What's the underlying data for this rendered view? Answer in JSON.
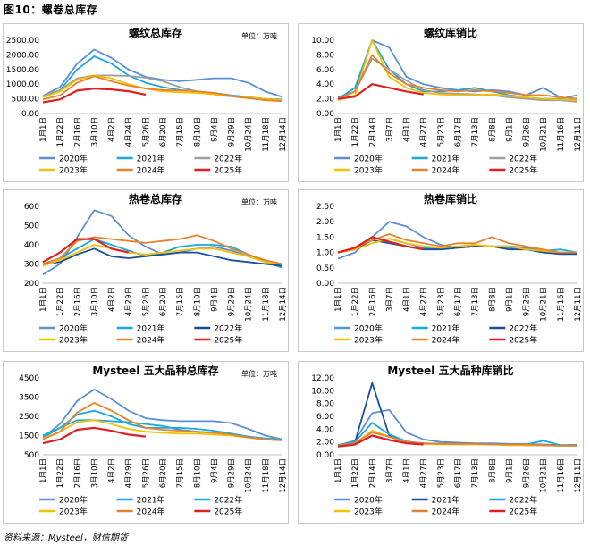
{
  "figure_title": "图10：螺卷总库存",
  "source": "资料来源：Mysteel，财信期货",
  "palette": {
    "2020年": "#5b8fd6",
    "2021年": "#1aa8e0",
    "2022年": "#9e9e9e",
    "2023年": "#f5c000",
    "2024年": "#e8822a",
    "2025年": "#e02020",
    "2022年_hot": "#1b4f9c"
  },
  "chart_data": [
    {
      "type": "line",
      "title": "螺纹总库存",
      "unit": "单位：万吨",
      "ylim": [
        0,
        2500
      ],
      "yticks": [
        "0.00",
        "500.00",
        "1000.00",
        "1500.00",
        "2000.00",
        "2500.00"
      ],
      "x_labels": [
        "1月1日",
        "1月22日",
        "2月16日",
        "3月10日",
        "4月2日",
        "4月24日",
        "5月26日",
        "6月20日",
        "7月15日",
        "8月10日",
        "9月4日",
        "9月29日",
        "10月24日",
        "11月18日",
        "12月14日"
      ],
      "legend": [
        "2020年",
        "2021年",
        "2022年",
        "2023年",
        "2024年",
        "2025年"
      ],
      "series": [
        {
          "name": "2020年",
          "color": "#5b8fd6",
          "values": [
            600,
            900,
            1700,
            2180,
            1900,
            1500,
            1250,
            1150,
            1100,
            1150,
            1200,
            1200,
            1050,
            750,
            560
          ]
        },
        {
          "name": "2021年",
          "color": "#1aa8e0",
          "values": [
            560,
            800,
            1500,
            1950,
            1700,
            1300,
            1050,
            900,
            800,
            750,
            700,
            620,
            560,
            500,
            480
          ]
        },
        {
          "name": "2022年",
          "color": "#9e9e9e",
          "values": [
            600,
            800,
            1200,
            1300,
            1300,
            1280,
            1220,
            1100,
            900,
            750,
            650,
            580,
            520,
            480,
            450
          ]
        },
        {
          "name": "2023年",
          "color": "#f5c000",
          "values": [
            550,
            750,
            1150,
            1300,
            1200,
            1000,
            850,
            750,
            720,
            700,
            650,
            600,
            550,
            500,
            450
          ]
        },
        {
          "name": "2024年",
          "color": "#e8822a",
          "values": [
            480,
            620,
            1050,
            1270,
            1100,
            950,
            850,
            800,
            780,
            760,
            700,
            600,
            520,
            450,
            420
          ]
        },
        {
          "name": "2025年",
          "color": "#e02020",
          "values": [
            380,
            480,
            780,
            850,
            820,
            760,
            640
          ]
        }
      ]
    },
    {
      "type": "line",
      "title": "螺纹库销比",
      "unit": "",
      "ylim": [
        0,
        10
      ],
      "yticks": [
        "0.00",
        "2.00",
        "4.00",
        "6.00",
        "8.00",
        "10.00"
      ],
      "x_labels": [
        "1月1日",
        "1月22日",
        "2月14日",
        "3月7日",
        "4月1日",
        "4月27日",
        "5月23日",
        "6月17日",
        "7月13日",
        "8月8日",
        "9月1日",
        "9月26日",
        "10月21日",
        "11月16日",
        "12月11日"
      ],
      "legend": [
        "2020年",
        "2021年",
        "2022年",
        "2023年",
        "2024年",
        "2025年"
      ],
      "series": [
        {
          "name": "2020年",
          "color": "#5b8fd6",
          "values": [
            2.2,
            3.0,
            10.0,
            9.0,
            5.0,
            4.0,
            3.5,
            3.2,
            3.0,
            3.2,
            3.0,
            2.5,
            3.5,
            2.2,
            2.0
          ]
        },
        {
          "name": "2021年",
          "color": "#1aa8e0",
          "values": [
            2.0,
            3.5,
            10.0,
            6.0,
            4.0,
            3.0,
            3.0,
            3.2,
            3.5,
            3.0,
            2.5,
            2.2,
            2.0,
            2.0,
            2.5
          ]
        },
        {
          "name": "2022年",
          "color": "#9e9e9e",
          "values": [
            2.0,
            3.0,
            7.5,
            6.0,
            4.5,
            3.2,
            2.8,
            2.7,
            2.6,
            2.5,
            2.2,
            2.0,
            1.8,
            1.8,
            1.6
          ]
        },
        {
          "name": "2023年",
          "color": "#f5c000",
          "values": [
            1.8,
            2.5,
            10.0,
            5.0,
            3.5,
            2.8,
            2.6,
            2.5,
            2.5,
            2.6,
            2.4,
            2.2,
            2.0,
            1.9,
            1.8
          ]
        },
        {
          "name": "2024年",
          "color": "#e8822a",
          "values": [
            2.0,
            3.0,
            8.0,
            5.5,
            4.0,
            3.5,
            3.2,
            3.0,
            3.2,
            3.0,
            2.8,
            2.5,
            2.5,
            2.2,
            2.0
          ]
        },
        {
          "name": "2025年",
          "color": "#e02020",
          "values": [
            2.0,
            2.3,
            4.0,
            3.5,
            3.0,
            2.6
          ]
        }
      ]
    },
    {
      "type": "line",
      "title": "热卷总库存",
      "unit": "单位：万吨",
      "ylim": [
        200,
        600
      ],
      "yticks": [
        "200",
        "300",
        "400",
        "500",
        "600"
      ],
      "x_labels": [
        "1月1日",
        "1月22日",
        "2月16日",
        "3月10日",
        "4月2日",
        "4月29日",
        "5月26日",
        "6月20日",
        "7月15日",
        "8月10日",
        "9月4日",
        "9月29日",
        "10月24日",
        "11月18日",
        "12月14日"
      ],
      "legend": [
        "2020年",
        "2021年",
        "2022年",
        "2023年",
        "2024年",
        "2025年"
      ],
      "series": [
        {
          "name": "2020年",
          "color": "#5b8fd6",
          "values": [
            245,
            300,
            440,
            580,
            550,
            450,
            390,
            350,
            360,
            380,
            390,
            370,
            340,
            310,
            290
          ]
        },
        {
          "name": "2021年",
          "color": "#1aa8e0",
          "values": [
            300,
            330,
            380,
            430,
            400,
            370,
            340,
            360,
            390,
            400,
            400,
            390,
            350,
            310,
            280
          ]
        },
        {
          "name": "2022年",
          "color": "#1b4f9c",
          "values": [
            300,
            310,
            350,
            380,
            340,
            330,
            340,
            350,
            360,
            360,
            340,
            320,
            310,
            300,
            290
          ]
        },
        {
          "name": "2023年",
          "color": "#f5c000",
          "values": [
            290,
            320,
            360,
            400,
            380,
            360,
            350,
            360,
            370,
            380,
            380,
            360,
            340,
            310,
            300
          ]
        },
        {
          "name": "2024年",
          "color": "#e8822a",
          "values": [
            300,
            330,
            420,
            440,
            430,
            420,
            410,
            420,
            430,
            450,
            420,
            380,
            350,
            320,
            300
          ]
        },
        {
          "name": "2025年",
          "color": "#e02020",
          "values": [
            310,
            360,
            430,
            430,
            380,
            360
          ]
        }
      ]
    },
    {
      "type": "line",
      "title": "热卷库销比",
      "unit": "",
      "ylim": [
        0,
        2.5
      ],
      "yticks": [
        "0.00",
        "0.50",
        "1.00",
        "1.50",
        "2.00",
        "2.50"
      ],
      "x_labels": [
        "1月1日",
        "1月22日",
        "2月16日",
        "3月7日",
        "4月1日",
        "4月27日",
        "5月23日",
        "6月17日",
        "7月13日",
        "8月8日",
        "9月1日",
        "9月26日",
        "10月21日",
        "11月16日",
        "12月11日"
      ],
      "legend": [
        "2020年",
        "2021年",
        "2022年",
        "2023年",
        "2024年",
        "2025年"
      ],
      "series": [
        {
          "name": "2020年",
          "color": "#5b8fd6",
          "values": [
            0.8,
            1.0,
            1.5,
            2.0,
            1.85,
            1.5,
            1.25,
            1.15,
            1.2,
            1.2,
            1.2,
            1.15,
            1.05,
            1.0,
            0.95
          ]
        },
        {
          "name": "2021年",
          "color": "#1aa8e0",
          "values": [
            1.0,
            1.1,
            1.3,
            1.45,
            1.3,
            1.15,
            1.1,
            1.15,
            1.2,
            1.2,
            1.15,
            1.1,
            1.05,
            1.1,
            1.0
          ]
        },
        {
          "name": "2022年",
          "color": "#1b4f9c",
          "values": [
            1.0,
            1.1,
            1.4,
            1.3,
            1.2,
            1.1,
            1.1,
            1.15,
            1.2,
            1.2,
            1.1,
            1.1,
            1.0,
            0.95,
            0.95
          ]
        },
        {
          "name": "2023年",
          "color": "#f5c000",
          "values": [
            1.0,
            1.1,
            1.3,
            1.45,
            1.3,
            1.2,
            1.15,
            1.2,
            1.25,
            1.2,
            1.2,
            1.1,
            1.05,
            1.0,
            1.0
          ]
        },
        {
          "name": "2024年",
          "color": "#e8822a",
          "values": [
            1.0,
            1.15,
            1.4,
            1.6,
            1.4,
            1.3,
            1.2,
            1.3,
            1.3,
            1.5,
            1.3,
            1.2,
            1.1,
            1.0,
            1.0
          ]
        },
        {
          "name": "2025年",
          "color": "#e02020",
          "values": [
            1.0,
            1.15,
            1.5,
            1.35,
            1.2,
            1.1
          ]
        }
      ]
    },
    {
      "type": "line",
      "title": "Mysteel 五大品种总库存",
      "unit": "单位：万吨",
      "ylim": [
        500,
        4500
      ],
      "yticks": [
        "500",
        "1500",
        "2500",
        "3500",
        "4500"
      ],
      "x_labels": [
        "1月1日",
        "1月22日",
        "2月16日",
        "3月10日",
        "4月2日",
        "4月29日",
        "5月26日",
        "6月20日",
        "7月15日",
        "8月10日",
        "9月4日",
        "9月29日",
        "10月24日",
        "11月18日",
        "12月14日"
      ],
      "legend": [
        "2020年",
        "2021年",
        "2022年",
        "2023年",
        "2024年",
        "2025年"
      ],
      "series": [
        {
          "name": "2020年",
          "color": "#5b8fd6",
          "values": [
            1400,
            2100,
            3300,
            3900,
            3400,
            2800,
            2400,
            2300,
            2250,
            2250,
            2250,
            2150,
            1850,
            1500,
            1300
          ]
        },
        {
          "name": "2021年",
          "color": "#1aa8e0",
          "values": [
            1400,
            1900,
            2600,
            2800,
            2500,
            2100,
            1900,
            1900,
            1900,
            1850,
            1750,
            1600,
            1450,
            1300,
            1250
          ]
        },
        {
          "name": "2022年",
          "color": "#1aa8e0",
          "values": [
            1500,
            1900,
            2300,
            2300,
            2250,
            2200,
            2100,
            2000,
            1800,
            1700,
            1650,
            1550,
            1450,
            1350,
            1300
          ]
        },
        {
          "name": "2023年",
          "color": "#f5c000",
          "values": [
            1350,
            1700,
            2200,
            2300,
            2100,
            1850,
            1700,
            1650,
            1600,
            1600,
            1550,
            1500,
            1400,
            1300,
            1250
          ]
        },
        {
          "name": "2024年",
          "color": "#e8822a",
          "values": [
            1300,
            1700,
            2700,
            3200,
            2800,
            2300,
            1900,
            1800,
            1750,
            1700,
            1650,
            1550,
            1400,
            1300,
            1250
          ]
        },
        {
          "name": "2025年",
          "color": "#e02020",
          "values": [
            1100,
            1300,
            1800,
            1900,
            1750,
            1550,
            1450
          ]
        }
      ]
    },
    {
      "type": "line",
      "title": "Mysteel 五大品种库销比",
      "unit": "",
      "ylim": [
        0,
        12
      ],
      "yticks": [
        "0.00",
        "2.00",
        "4.00",
        "6.00",
        "8.00",
        "10.00",
        "12.00"
      ],
      "x_labels": [
        "1月1日",
        "1月22日",
        "2月14日",
        "3月7日",
        "4月1日",
        "4月27日",
        "5月23日",
        "6月17日",
        "7月13日",
        "8月8日",
        "9月1日",
        "9月26日",
        "10月21日",
        "11月16日",
        "12月11日"
      ],
      "legend": [
        "2020年",
        "2021年",
        "2022年",
        "2023年",
        "2024年",
        "2025年"
      ],
      "series": [
        {
          "name": "2020年",
          "color": "#5b8fd6",
          "values": [
            1.5,
            2.2,
            6.5,
            7.0,
            3.5,
            2.4,
            2.0,
            1.9,
            1.8,
            1.8,
            1.7,
            1.7,
            1.6,
            1.5,
            1.5
          ]
        },
        {
          "name": "2021年",
          "color": "#1b4f9c",
          "values": [
            1.5,
            2.0,
            11.2,
            3.0,
            2.0,
            1.8,
            1.7,
            1.7,
            1.7,
            1.6,
            1.6,
            1.5,
            1.5,
            1.5,
            1.5
          ]
        },
        {
          "name": "2022年",
          "color": "#1aa8e0",
          "values": [
            1.5,
            2.0,
            5.0,
            3.2,
            2.1,
            1.8,
            1.7,
            1.7,
            1.7,
            1.6,
            1.6,
            1.6,
            2.2,
            1.5,
            1.4
          ]
        },
        {
          "name": "2023年",
          "color": "#f5c000",
          "values": [
            1.4,
            1.8,
            3.8,
            2.8,
            2.0,
            1.7,
            1.6,
            1.6,
            1.6,
            1.6,
            1.5,
            1.5,
            1.5,
            1.4,
            1.4
          ]
        },
        {
          "name": "2024年",
          "color": "#e8822a",
          "values": [
            1.4,
            1.8,
            3.5,
            2.8,
            2.0,
            1.8,
            1.7,
            1.7,
            1.7,
            1.6,
            1.6,
            1.6,
            1.5,
            1.4,
            1.4
          ]
        },
        {
          "name": "2025年",
          "color": "#e02020",
          "values": [
            1.3,
            1.6,
            3.0,
            2.3,
            1.8,
            1.6
          ]
        }
      ]
    }
  ]
}
